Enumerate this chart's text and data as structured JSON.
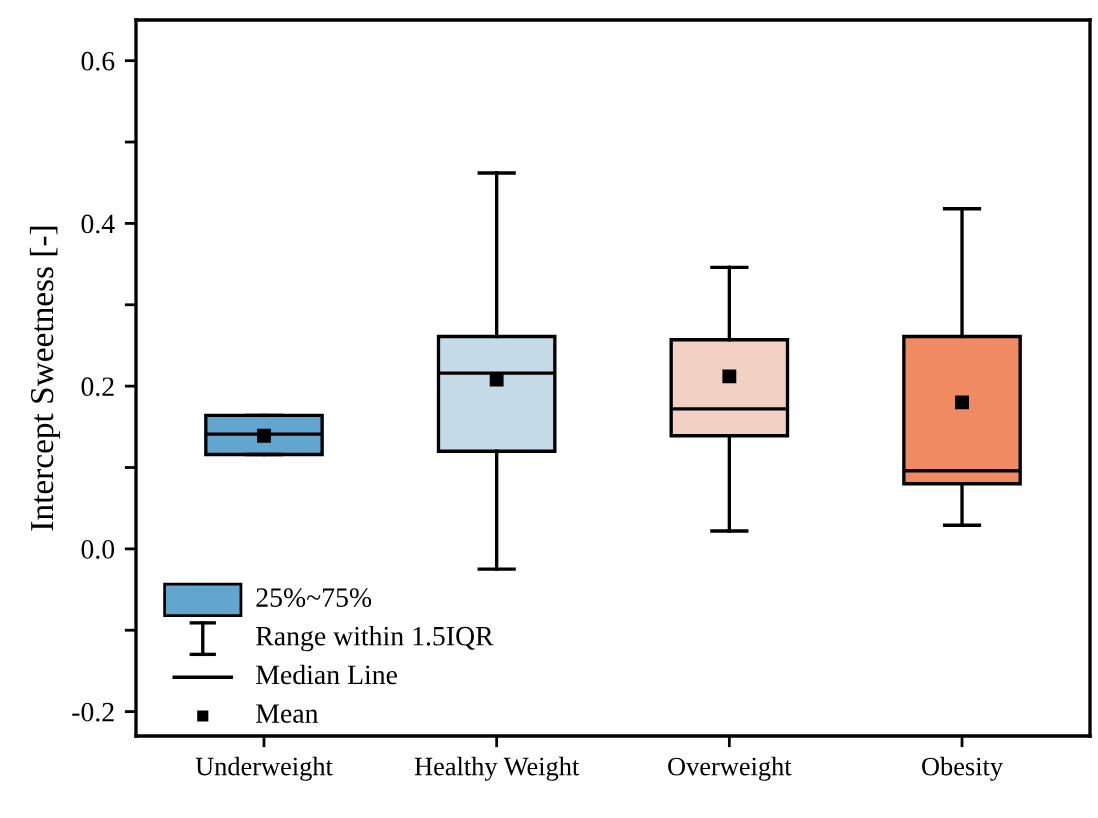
{
  "chart_data": {
    "type": "box",
    "ylabel": "Intercept Sweetness [-]",
    "categories": [
      "Underweight",
      "Healthy Weight",
      "Overweight",
      "Obesity"
    ],
    "colors": [
      "#62a6cf",
      "#c5dbe8",
      "#f3d0c4",
      "#ef8a62"
    ],
    "boxes": [
      {
        "low": 0.116,
        "q1": 0.116,
        "median": 0.141,
        "q3": 0.164,
        "high": 0.164,
        "mean": 0.139
      },
      {
        "low": -0.025,
        "q1": 0.12,
        "median": 0.216,
        "q3": 0.261,
        "high": 0.462,
        "mean": 0.208
      },
      {
        "low": 0.022,
        "q1": 0.139,
        "median": 0.172,
        "q3": 0.257,
        "high": 0.346,
        "mean": 0.212
      },
      {
        "low": 0.029,
        "q1": 0.08,
        "median": 0.096,
        "q3": 0.261,
        "high": 0.418,
        "mean": 0.18
      }
    ],
    "ylim": [
      -0.23,
      0.65
    ],
    "yticks": [
      -0.2,
      {
        "value": -0.1,
        "label": null
      },
      {
        "value": 0,
        "label": "0.0"
      },
      {
        "value": 0.1,
        "label": null
      },
      0.2,
      {
        "value": 0.3,
        "label": null
      },
      0.4,
      {
        "value": 0.5,
        "label": null
      },
      0.6
    ],
    "annotations": [
      "25%~75%",
      "Range within 1.5IQR",
      "Median Line",
      "Mean"
    ],
    "grid": false,
    "marker": "square"
  }
}
